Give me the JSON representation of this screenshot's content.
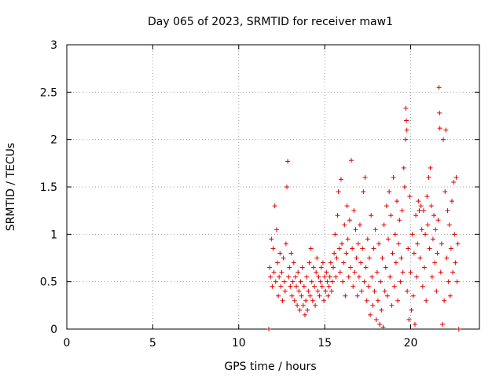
{
  "chart_data": {
    "type": "scatter",
    "title": "Day 065 of 2023, SRMTID for receiver maw1",
    "xlabel": "GPS time / hours",
    "ylabel": "SRMTID / TECUs",
    "xlim": [
      0,
      24
    ],
    "ylim": [
      0,
      3
    ],
    "xticks": [
      0,
      5,
      10,
      15,
      20
    ],
    "yticks": [
      0,
      0.5,
      1,
      1.5,
      2,
      2.5,
      3
    ],
    "xtick_labels": [
      "0",
      "5",
      "10",
      "15",
      "20"
    ],
    "ytick_labels": [
      "0",
      "0.5",
      "1",
      "1.5",
      "2",
      "2.5",
      "3"
    ],
    "grid": true,
    "marker": "+",
    "series": [
      {
        "name": "maw1",
        "color": "#e00000",
        "points": [
          [
            11.75,
            0.0
          ],
          [
            11.8,
            0.65
          ],
          [
            11.85,
            0.55
          ],
          [
            11.9,
            0.95
          ],
          [
            11.95,
            0.45
          ],
          [
            12.0,
            0.85
          ],
          [
            12.05,
            0.6
          ],
          [
            12.1,
            1.3
          ],
          [
            12.15,
            0.5
          ],
          [
            12.2,
            1.05
          ],
          [
            12.25,
            0.7
          ],
          [
            12.3,
            0.35
          ],
          [
            12.35,
            0.55
          ],
          [
            12.4,
            0.8
          ],
          [
            12.45,
            0.45
          ],
          [
            12.5,
            0.6
          ],
          [
            12.55,
            0.3
          ],
          [
            12.6,
            0.75
          ],
          [
            12.65,
            0.5
          ],
          [
            12.7,
            0.4
          ],
          [
            12.75,
            0.9
          ],
          [
            12.8,
            1.5
          ],
          [
            12.85,
            1.77
          ],
          [
            12.9,
            0.55
          ],
          [
            12.95,
            0.65
          ],
          [
            13.0,
            0.45
          ],
          [
            13.05,
            0.8
          ],
          [
            13.1,
            0.35
          ],
          [
            13.15,
            0.5
          ],
          [
            13.2,
            0.7
          ],
          [
            13.25,
            0.3
          ],
          [
            13.3,
            0.55
          ],
          [
            13.35,
            0.45
          ],
          [
            13.4,
            0.25
          ],
          [
            13.45,
            0.6
          ],
          [
            13.5,
            0.4
          ],
          [
            13.55,
            0.2
          ],
          [
            13.6,
            0.5
          ],
          [
            13.65,
            0.35
          ],
          [
            13.7,
            0.65
          ],
          [
            13.75,
            0.25
          ],
          [
            13.8,
            0.45
          ],
          [
            13.85,
            0.15
          ],
          [
            13.9,
            0.3
          ],
          [
            13.95,
            0.55
          ],
          [
            14.0,
            0.2
          ],
          [
            14.05,
            0.4
          ],
          [
            14.1,
            0.7
          ],
          [
            14.15,
            0.35
          ],
          [
            14.2,
            0.85
          ],
          [
            14.25,
            0.5
          ],
          [
            14.3,
            0.3
          ],
          [
            14.35,
            0.65
          ],
          [
            14.4,
            0.45
          ],
          [
            14.45,
            0.25
          ],
          [
            14.5,
            0.6
          ],
          [
            14.55,
            0.75
          ],
          [
            14.6,
            0.4
          ],
          [
            14.65,
            0.55
          ],
          [
            14.7,
            0.35
          ],
          [
            14.75,
            0.5
          ],
          [
            14.8,
            0.65
          ],
          [
            14.85,
            0.45
          ],
          [
            14.9,
            0.7
          ],
          [
            14.95,
            0.3
          ],
          [
            15.0,
            0.55
          ],
          [
            15.05,
            0.4
          ],
          [
            15.1,
            0.6
          ],
          [
            15.15,
            0.5
          ],
          [
            15.2,
            0.35
          ],
          [
            15.25,
            0.45
          ],
          [
            15.3,
            0.55
          ],
          [
            15.35,
            0.7
          ],
          [
            15.4,
            0.4
          ],
          [
            15.45,
            0.5
          ],
          [
            15.5,
            0.65
          ],
          [
            15.55,
            0.8
          ],
          [
            15.6,
            1.0
          ],
          [
            15.65,
            0.55
          ],
          [
            15.7,
            0.75
          ],
          [
            15.75,
            1.2
          ],
          [
            15.8,
            1.45
          ],
          [
            15.85,
            0.85
          ],
          [
            15.9,
            0.6
          ],
          [
            15.95,
            1.58
          ],
          [
            16.0,
            0.9
          ],
          [
            16.05,
            0.5
          ],
          [
            16.1,
            0.7
          ],
          [
            16.15,
            1.1
          ],
          [
            16.2,
            0.35
          ],
          [
            16.25,
            0.8
          ],
          [
            16.3,
            1.3
          ],
          [
            16.35,
            0.95
          ],
          [
            16.4,
            0.55
          ],
          [
            16.45,
            1.15
          ],
          [
            16.5,
            0.65
          ],
          [
            16.55,
            1.78
          ],
          [
            16.6,
            0.85
          ],
          [
            16.65,
            0.45
          ],
          [
            16.7,
            1.25
          ],
          [
            16.75,
            0.6
          ],
          [
            16.8,
            1.05
          ],
          [
            16.85,
            0.75
          ],
          [
            16.9,
            0.35
          ],
          [
            16.95,
            0.9
          ],
          [
            17.0,
            0.55
          ],
          [
            17.05,
            1.1
          ],
          [
            17.1,
            0.7
          ],
          [
            17.15,
            0.4
          ],
          [
            17.2,
            0.85
          ],
          [
            17.25,
            1.45
          ],
          [
            17.3,
            0.5
          ],
          [
            17.35,
            1.6
          ],
          [
            17.4,
            0.65
          ],
          [
            17.45,
            0.3
          ],
          [
            17.5,
            0.95
          ],
          [
            17.55,
            0.45
          ],
          [
            17.6,
            0.75
          ],
          [
            17.65,
            0.15
          ],
          [
            17.7,
            1.2
          ],
          [
            17.75,
            0.55
          ],
          [
            17.8,
            0.25
          ],
          [
            17.85,
            0.85
          ],
          [
            17.9,
            0.4
          ],
          [
            17.95,
            1.05
          ],
          [
            18.0,
            0.1
          ],
          [
            18.05,
            0.6
          ],
          [
            18.1,
            0.3
          ],
          [
            18.15,
            0.9
          ],
          [
            18.2,
            0.05
          ],
          [
            18.25,
            0.5
          ],
          [
            18.3,
            0.2
          ],
          [
            18.35,
            0.75
          ],
          [
            18.4,
            0.02
          ],
          [
            18.45,
            1.1
          ],
          [
            18.5,
            0.4
          ],
          [
            18.55,
            0.65
          ],
          [
            18.6,
            1.3
          ],
          [
            18.65,
            0.35
          ],
          [
            18.7,
            0.95
          ],
          [
            18.75,
            1.45
          ],
          [
            18.8,
            0.55
          ],
          [
            18.85,
            1.2
          ],
          [
            18.9,
            0.25
          ],
          [
            18.95,
            0.8
          ],
          [
            19.0,
            1.6
          ],
          [
            19.05,
            0.45
          ],
          [
            19.1,
            1.0
          ],
          [
            19.15,
            0.7
          ],
          [
            19.2,
            1.35
          ],
          [
            19.25,
            0.3
          ],
          [
            19.3,
            0.9
          ],
          [
            19.35,
            1.15
          ],
          [
            19.4,
            0.5
          ],
          [
            19.45,
            0.75
          ],
          [
            19.5,
            1.25
          ],
          [
            19.55,
            0.6
          ],
          [
            19.6,
            1.7
          ],
          [
            19.65,
            1.5
          ],
          [
            19.7,
            2.0
          ],
          [
            19.72,
            2.33
          ],
          [
            19.75,
            2.2
          ],
          [
            19.78,
            2.1
          ],
          [
            19.8,
            0.4
          ],
          [
            19.85,
            0.85
          ],
          [
            19.9,
            0.1
          ],
          [
            19.95,
            1.4
          ],
          [
            20.0,
            0.6
          ],
          [
            20.05,
            0.2
          ],
          [
            20.1,
            1.0
          ],
          [
            20.15,
            0.35
          ],
          [
            20.2,
            0.8
          ],
          [
            20.25,
            0.05
          ],
          [
            20.3,
            1.2
          ],
          [
            20.35,
            0.55
          ],
          [
            20.4,
            0.9
          ],
          [
            20.45,
            1.35
          ],
          [
            20.5,
            1.25
          ],
          [
            20.55,
            0.75
          ],
          [
            20.6,
            1.3
          ],
          [
            20.65,
            1.05
          ],
          [
            20.7,
            0.45
          ],
          [
            20.75,
            1.25
          ],
          [
            20.8,
            0.65
          ],
          [
            20.85,
            1.0
          ],
          [
            20.9,
            0.3
          ],
          [
            20.95,
            1.4
          ],
          [
            21.0,
            1.1
          ],
          [
            21.05,
            1.6
          ],
          [
            21.1,
            0.85
          ],
          [
            21.15,
            1.7
          ],
          [
            21.2,
            1.3
          ],
          [
            21.25,
            0.55
          ],
          [
            21.3,
            0.95
          ],
          [
            21.35,
            1.2
          ],
          [
            21.4,
            0.7
          ],
          [
            21.45,
            1.05
          ],
          [
            21.5,
            0.4
          ],
          [
            21.55,
            0.8
          ],
          [
            21.6,
            1.15
          ],
          [
            21.65,
            2.55
          ],
          [
            21.68,
            2.28
          ],
          [
            21.7,
            2.12
          ],
          [
            21.75,
            0.6
          ],
          [
            21.8,
            0.9
          ],
          [
            21.85,
            0.05
          ],
          [
            21.9,
            2.0
          ],
          [
            21.95,
            0.3
          ],
          [
            22.0,
            1.45
          ],
          [
            22.05,
            2.1
          ],
          [
            22.1,
            0.75
          ],
          [
            22.15,
            1.25
          ],
          [
            22.2,
            0.5
          ],
          [
            22.25,
            1.1
          ],
          [
            22.3,
            0.35
          ],
          [
            22.35,
            0.85
          ],
          [
            22.4,
            1.35
          ],
          [
            22.45,
            0.6
          ],
          [
            22.5,
            1.55
          ],
          [
            22.55,
            1.0
          ],
          [
            22.6,
            0.7
          ],
          [
            22.65,
            1.6
          ],
          [
            22.7,
            0.5
          ],
          [
            22.75,
            0.9
          ],
          [
            22.8,
            0.0
          ]
        ]
      }
    ]
  }
}
